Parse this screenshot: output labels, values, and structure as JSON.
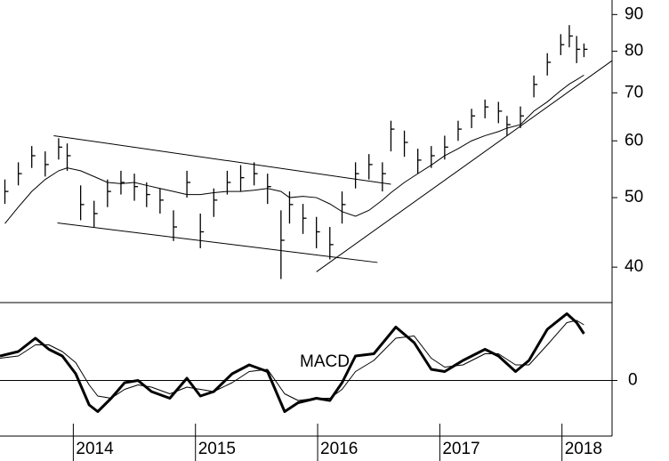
{
  "chart_data": [
    {
      "type": "ohlc",
      "log_scale": true,
      "color": "#000000",
      "x": [
        2013.44,
        2013.55,
        2013.66,
        2013.77,
        2013.88,
        2013.95,
        2014.06,
        2014.17,
        2014.28,
        2014.39,
        2014.5,
        2014.6,
        2014.71,
        2014.82,
        2014.93,
        2015.04,
        2015.15,
        2015.26,
        2015.37,
        2015.48,
        2015.59,
        2015.7,
        2015.77,
        2015.88,
        2015.99,
        2016.1,
        2016.2,
        2016.31,
        2016.42,
        2016.53,
        2016.6,
        2016.71,
        2016.82,
        2016.93,
        2017.04,
        2017.15,
        2017.26,
        2017.37,
        2017.48,
        2017.55,
        2017.66,
        2017.77,
        2017.88,
        2017.99,
        2018.06,
        2018.12,
        2018.18
      ],
      "high": [
        53,
        56,
        59,
        58,
        60.5,
        59.5,
        52,
        49.5,
        53,
        54.5,
        54,
        52.5,
        51.5,
        48,
        54.5,
        47.5,
        51.5,
        54.5,
        55.5,
        56,
        54,
        48,
        51,
        49,
        47,
        45.5,
        51,
        56,
        57.5,
        56,
        64,
        62,
        58.5,
        59,
        61,
        64,
        66.5,
        68.5,
        68,
        65,
        67,
        74,
        79.5,
        84.5,
        87,
        84,
        82
      ],
      "low": [
        49,
        52,
        55,
        53.5,
        56.5,
        54.5,
        46.5,
        45.5,
        48.5,
        50.5,
        49.5,
        48.5,
        47.5,
        43.5,
        50,
        42.5,
        47,
        50.5,
        51,
        52,
        49,
        38.5,
        46,
        44.5,
        42.5,
        41,
        46,
        51.5,
        53,
        51,
        58,
        57,
        54,
        55,
        56.5,
        60,
        62.5,
        64.5,
        63.5,
        61,
        62.5,
        69,
        74,
        79,
        81,
        77,
        78.5
      ],
      "close": [
        51,
        54,
        57.2,
        55.6,
        58.8,
        57.2,
        48.9,
        47.5,
        51,
        52.5,
        51.8,
        50.5,
        49.6,
        45.5,
        52.5,
        44.8,
        49.6,
        52.5,
        53.3,
        54,
        51.8,
        43.6,
        48.9,
        46.8,
        44.8,
        43,
        48.9,
        54,
        55.6,
        54,
        62.3,
        59.7,
        56.4,
        57.2,
        58.8,
        62.3,
        65,
        66.9,
        66,
        63.2,
        65,
        71.9,
        77.2,
        81.7,
        84,
        80.5,
        80.5
      ],
      "moving_average": [
        46,
        48.5,
        51,
        53,
        54.5,
        55,
        54.5,
        53.5,
        52.5,
        52.3,
        52.5,
        52,
        51.5,
        51,
        50.5,
        50.5,
        50.8,
        51,
        51,
        51.2,
        51.5,
        51,
        50,
        50.2,
        50,
        49,
        47.8,
        47.1,
        48,
        49.6,
        50.8,
        52.5,
        54,
        55.5,
        57.2,
        58.5,
        60,
        61,
        61.8,
        62.5,
        63.2,
        66,
        68,
        70.5,
        72,
        73,
        74.1
      ],
      "trendlines": [
        {
          "x": [
            2013.84,
            2016.6
          ],
          "y": [
            61,
            52.2
          ]
        },
        {
          "x": [
            2013.87,
            2016.49
          ],
          "y": [
            46.1,
            40.6
          ]
        },
        {
          "x": [
            2015.99,
            2018.41
          ],
          "y": [
            39.4,
            77.6
          ]
        }
      ],
      "xlim": [
        2013.4,
        2018.41
      ],
      "ylim": [
        35.9,
        94.3
      ],
      "yticks": [
        40,
        50,
        60,
        70,
        80,
        90
      ]
    },
    {
      "type": "line",
      "annotation": "MACD",
      "x": [
        2013.4,
        2013.55,
        2013.69,
        2013.8,
        2013.91,
        2014.02,
        2014.13,
        2014.2,
        2014.31,
        2014.42,
        2014.53,
        2014.64,
        2014.79,
        2014.93,
        2015.04,
        2015.15,
        2015.3,
        2015.44,
        2015.59,
        2015.73,
        2015.84,
        2015.99,
        2016.1,
        2016.2,
        2016.31,
        2016.46,
        2016.64,
        2016.79,
        2016.93,
        2017.04,
        2017.19,
        2017.37,
        2017.48,
        2017.62,
        2017.73,
        2017.88,
        2018.04,
        2018.12,
        2018.18
      ],
      "lines": [
        {
          "color": "#000000",
          "width": 3,
          "values": [
            1.1,
            1.3,
            1.9,
            1.4,
            1.1,
            0.3,
            -1.1,
            -1.4,
            -0.8,
            -0.1,
            0,
            -0.5,
            -0.8,
            0.1,
            -0.7,
            -0.5,
            0.3,
            0.7,
            0.4,
            -1.4,
            -1,
            -0.8,
            -0.9,
            -0.1,
            1.1,
            1.2,
            2.4,
            1.7,
            0.5,
            0.4,
            0.9,
            1.4,
            1.1,
            0.4,
            0.9,
            2.3,
            3.0,
            2.6,
            2.1
          ]
        },
        {
          "color": "#000000",
          "width": 1,
          "values": [
            1.0,
            1.1,
            1.6,
            1.6,
            1.3,
            0.8,
            -0.2,
            -0.7,
            -0.8,
            -0.4,
            -0.2,
            -0.3,
            -0.6,
            -0.3,
            -0.4,
            -0.5,
            -0.1,
            0.4,
            0.5,
            -0.6,
            -0.9,
            -0.8,
            -0.8,
            -0.4,
            0.4,
            0.9,
            1.9,
            2.0,
            1.0,
            0.6,
            0.7,
            1.2,
            1.2,
            0.7,
            0.7,
            1.6,
            2.6,
            2.7,
            2.5
          ]
        }
      ],
      "xlim": [
        2013.4,
        2018.41
      ],
      "ylim": [
        -2.5,
        3.5
      ],
      "yticks": [
        0
      ],
      "xticks": [
        2014,
        2015,
        2016,
        2017,
        2018
      ]
    }
  ]
}
